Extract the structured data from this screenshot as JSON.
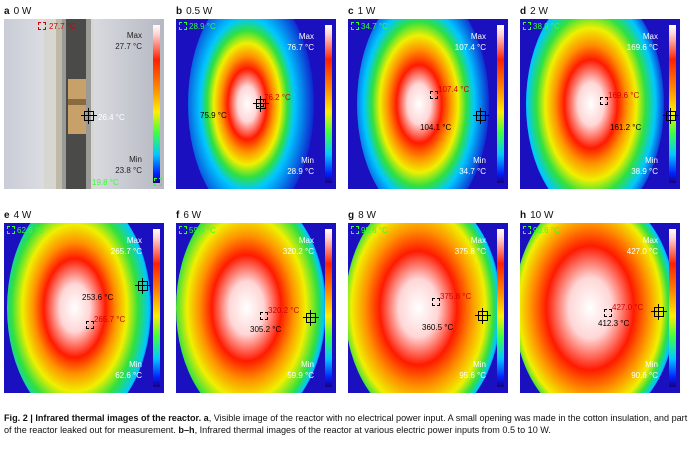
{
  "figure": {
    "panels": [
      {
        "id": "a",
        "power": "0 W",
        "top": "27.7 °C",
        "max_label": "Max",
        "max": "27.7 °C",
        "spot": "26.4 °C",
        "min_label": "Min",
        "min": "23.8 °C",
        "bottom": "19.8 °C",
        "type": "visible"
      },
      {
        "id": "b",
        "power": "0.5 W",
        "corner": "28.9 °C",
        "max_label": "Max",
        "max": "76.7 °C",
        "hot": "76.2 °C",
        "spot": "75.9 °C",
        "min_label": "Min",
        "min": "28.9 °C"
      },
      {
        "id": "c",
        "power": "1 W",
        "corner": "34.7 °C",
        "max_label": "Max",
        "max": "107.4 °C",
        "hot": "107.4 °C",
        "spot": "104.1 °C",
        "min_label": "Min",
        "min": "34.7 °C"
      },
      {
        "id": "d",
        "power": "2 W",
        "corner": "38.9 °C",
        "max_label": "Max",
        "max": "169.6 °C",
        "hot": "169.6 °C",
        "spot": "161.2 °C",
        "min_label": "Min",
        "min": "38.9 °C"
      },
      {
        "id": "e",
        "power": "4 W",
        "corner": "62.6 °C",
        "max_label": "Max",
        "max": "265.7 °C",
        "hot": "265.7 °C",
        "spot": "253.6 °C",
        "min_label": "Min",
        "min": "62.6 °C"
      },
      {
        "id": "f",
        "power": "6 W",
        "corner": "59.9 °C",
        "max_label": "Max",
        "max": "320.2 °C",
        "hot": "320.2 °C",
        "spot": "305.2 °C",
        "min_label": "Min",
        "min": "59.9 °C"
      },
      {
        "id": "g",
        "power": "8 W",
        "corner": "95.6 °C",
        "max_label": "Max",
        "max": "375.8 °C",
        "hot": "375.8 °C",
        "spot": "360.5 °C",
        "min_label": "Min",
        "min": "95.6 °C"
      },
      {
        "id": "h",
        "power": "10 W",
        "corner": "90.6 °C",
        "max_label": "Max",
        "max": "427.0 °C",
        "hot": "427.0 °C",
        "spot": "412.3 °C",
        "min_label": "Min",
        "min": "90.6 °C"
      }
    ],
    "caption": {
      "label": "Fig. 2 | Infrared thermal images of the reactor.",
      "part_a_label": "a",
      "part_a_text": ", Visible image of the reactor with no electrical power input. A small opening was made in the cotton insulation, and part of the reactor leaked out for measurement.",
      "part_bh_label": "b–h",
      "part_bh_text": ", Infrared thermal images of the reactor at various electric power inputs from 0.5 to 10 W."
    }
  }
}
